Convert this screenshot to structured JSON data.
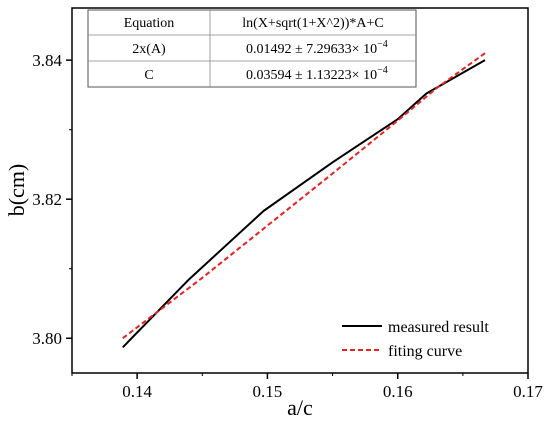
{
  "chart_data": {
    "type": "line",
    "xlabel": "a/c",
    "ylabel": "b(cm)",
    "xlim": [
      0.135,
      0.17
    ],
    "ylim": [
      3.795,
      3.8475
    ],
    "x_ticks": [
      0.14,
      0.15,
      0.16,
      0.17
    ],
    "y_ticks": [
      3.8,
      3.82,
      3.84
    ],
    "x_tick_labels": [
      "0.14",
      "0.15",
      "0.16",
      "0.17"
    ],
    "y_tick_labels": [
      "3.80",
      "3.82",
      "3.84"
    ],
    "grid": false,
    "legend_position": "bottom-right",
    "series": [
      {
        "name": "measured result",
        "color": "#000000",
        "style": "solid",
        "x": [
          0.1389,
          0.144,
          0.1497,
          0.155,
          0.16,
          0.1622,
          0.1667
        ],
        "y": [
          3.7987,
          3.8085,
          3.8183,
          3.8253,
          3.8315,
          3.8352,
          3.84
        ]
      },
      {
        "name": "fiting curve",
        "color": "#e8231f",
        "style": "dashed",
        "x": [
          0.1389,
          0.145,
          0.15,
          0.155,
          0.16,
          0.163,
          0.1667
        ],
        "y": [
          3.8,
          3.8087,
          3.8162,
          3.8237,
          3.8313,
          3.836,
          3.841
        ]
      }
    ],
    "fit_table": {
      "rows": [
        [
          "Equation",
          "ln(X+sqrt(1+X^2))*A+C"
        ],
        [
          "2x(A)",
          "0.01492 ± 7.29633× 10",
          "−4"
        ],
        [
          "C",
          "0.03594 ± 1.13223× 10",
          "−4"
        ]
      ]
    }
  }
}
